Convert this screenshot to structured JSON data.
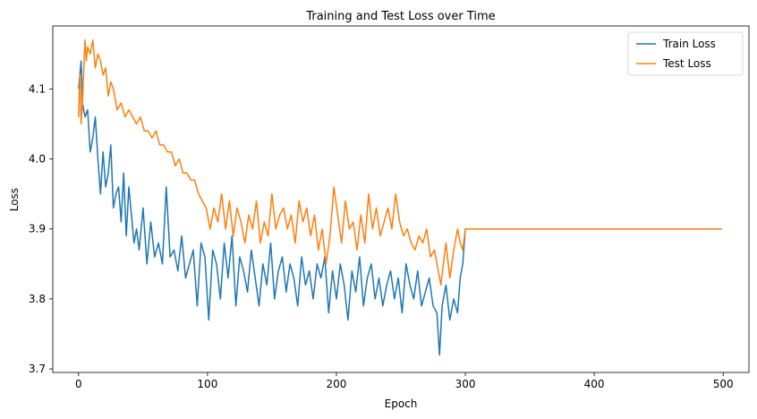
{
  "chart_data": {
    "type": "line",
    "title": "Training and Test Loss over Time",
    "xlabel": "Epoch",
    "ylabel": "Loss",
    "xlim": [
      -20,
      520
    ],
    "ylim": [
      3.695,
      4.19
    ],
    "xticks": [
      0,
      100,
      200,
      300,
      400,
      500
    ],
    "yticks": [
      3.7,
      3.8,
      3.9,
      4.0,
      4.1
    ],
    "legend_position": "top-right",
    "grid": false,
    "series": [
      {
        "name": "Train Loss",
        "color": "#1f77b4",
        "x": [
          0,
          2,
          3,
          5,
          7,
          9,
          11,
          13,
          15,
          17,
          19,
          21,
          23,
          25,
          27,
          29,
          31,
          33,
          35,
          37,
          39,
          41,
          43,
          45,
          47,
          50,
          53,
          56,
          59,
          62,
          65,
          68,
          71,
          74,
          77,
          80,
          83,
          86,
          89,
          92,
          95,
          98,
          101,
          104,
          107,
          110,
          113,
          116,
          119,
          122,
          125,
          128,
          131,
          134,
          137,
          140,
          143,
          146,
          149,
          152,
          155,
          158,
          161,
          164,
          167,
          170,
          173,
          176,
          179,
          182,
          185,
          188,
          191,
          194,
          197,
          200,
          203,
          206,
          209,
          212,
          215,
          218,
          221,
          224,
          227,
          230,
          233,
          236,
          239,
          242,
          245,
          248,
          251,
          254,
          257,
          260,
          263,
          266,
          269,
          272,
          275,
          278,
          280,
          282,
          285,
          288,
          291,
          294,
          296,
          298,
          300,
          350,
          400,
          450,
          499
        ],
        "y": [
          4.1,
          4.14,
          4.08,
          4.06,
          4.07,
          4.01,
          4.03,
          4.06,
          4.0,
          3.95,
          4.01,
          3.96,
          3.98,
          4.02,
          3.93,
          3.95,
          3.96,
          3.91,
          3.98,
          3.89,
          3.96,
          3.92,
          3.88,
          3.9,
          3.87,
          3.93,
          3.85,
          3.91,
          3.86,
          3.88,
          3.85,
          3.96,
          3.86,
          3.87,
          3.84,
          3.89,
          3.83,
          3.85,
          3.87,
          3.79,
          3.88,
          3.86,
          3.77,
          3.87,
          3.85,
          3.8,
          3.88,
          3.83,
          3.89,
          3.79,
          3.86,
          3.84,
          3.81,
          3.87,
          3.83,
          3.79,
          3.85,
          3.82,
          3.88,
          3.8,
          3.84,
          3.86,
          3.81,
          3.85,
          3.83,
          3.79,
          3.86,
          3.82,
          3.84,
          3.8,
          3.85,
          3.83,
          3.86,
          3.78,
          3.84,
          3.8,
          3.85,
          3.82,
          3.77,
          3.84,
          3.81,
          3.86,
          3.79,
          3.83,
          3.85,
          3.8,
          3.83,
          3.79,
          3.82,
          3.84,
          3.8,
          3.83,
          3.78,
          3.85,
          3.82,
          3.8,
          3.84,
          3.79,
          3.81,
          3.83,
          3.79,
          3.78,
          3.72,
          3.79,
          3.82,
          3.77,
          3.8,
          3.78,
          3.83,
          3.85,
          3.9,
          3.9,
          3.9,
          3.9,
          3.9
        ]
      },
      {
        "name": "Test Loss",
        "color": "#ff7f0e",
        "x": [
          0,
          1,
          2,
          3,
          5,
          6,
          7,
          9,
          11,
          13,
          15,
          17,
          19,
          21,
          23,
          25,
          27,
          30,
          33,
          36,
          39,
          42,
          45,
          48,
          51,
          54,
          57,
          60,
          63,
          66,
          69,
          72,
          75,
          78,
          81,
          84,
          87,
          90,
          93,
          96,
          99,
          102,
          105,
          108,
          111,
          114,
          117,
          120,
          123,
          126,
          129,
          132,
          135,
          138,
          141,
          144,
          147,
          150,
          153,
          156,
          159,
          162,
          165,
          168,
          171,
          174,
          177,
          180,
          183,
          186,
          189,
          192,
          195,
          198,
          201,
          204,
          207,
          210,
          213,
          216,
          219,
          222,
          225,
          228,
          231,
          234,
          237,
          240,
          243,
          246,
          249,
          252,
          255,
          258,
          261,
          264,
          267,
          270,
          273,
          276,
          279,
          281,
          283,
          285,
          288,
          291,
          294,
          296,
          298,
          300,
          350,
          400,
          450,
          499
        ],
        "y": [
          4.06,
          4.12,
          4.05,
          4.08,
          4.17,
          4.14,
          4.16,
          4.15,
          4.17,
          4.13,
          4.15,
          4.14,
          4.12,
          4.13,
          4.09,
          4.11,
          4.1,
          4.07,
          4.08,
          4.06,
          4.07,
          4.06,
          4.05,
          4.06,
          4.04,
          4.04,
          4.03,
          4.04,
          4.02,
          4.02,
          4.01,
          4.01,
          3.99,
          4.0,
          3.98,
          3.98,
          3.97,
          3.97,
          3.95,
          3.94,
          3.93,
          3.9,
          3.93,
          3.91,
          3.95,
          3.9,
          3.94,
          3.89,
          3.93,
          3.91,
          3.88,
          3.92,
          3.9,
          3.94,
          3.88,
          3.91,
          3.89,
          3.95,
          3.9,
          3.92,
          3.93,
          3.9,
          3.92,
          3.88,
          3.94,
          3.91,
          3.93,
          3.89,
          3.92,
          3.87,
          3.9,
          3.85,
          3.89,
          3.96,
          3.92,
          3.88,
          3.94,
          3.9,
          3.91,
          3.87,
          3.92,
          3.88,
          3.95,
          3.9,
          3.93,
          3.89,
          3.91,
          3.93,
          3.9,
          3.95,
          3.91,
          3.89,
          3.9,
          3.88,
          3.87,
          3.89,
          3.88,
          3.9,
          3.86,
          3.87,
          3.84,
          3.82,
          3.85,
          3.88,
          3.83,
          3.87,
          3.9,
          3.88,
          3.87,
          3.9,
          3.9,
          3.9,
          3.9,
          3.9
        ]
      }
    ]
  }
}
